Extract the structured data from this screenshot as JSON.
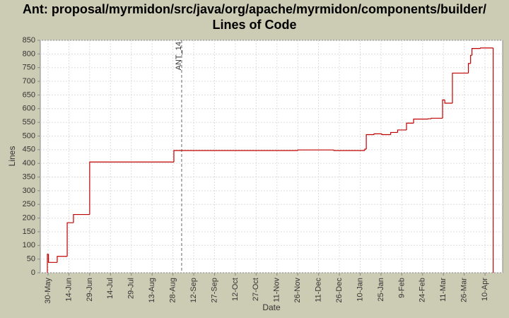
{
  "chart_data": {
    "type": "step",
    "title": [
      "Ant: proposal/myrmidon/src/java/org/apache/myrmidon/components/builder/",
      "Lines of Code"
    ],
    "x_label": "Date",
    "y_label": "Lines",
    "xlim": [
      -5.6,
      327.7
    ],
    "ylim": [
      0,
      850
    ],
    "xticks": [
      {
        "value": 0,
        "label": "30-May"
      },
      {
        "value": 15,
        "label": "14-Jun"
      },
      {
        "value": 30,
        "label": "29-Jun"
      },
      {
        "value": 45,
        "label": "14-Jul"
      },
      {
        "value": 60,
        "label": "29-Jul"
      },
      {
        "value": 75,
        "label": "13-Aug"
      },
      {
        "value": 90,
        "label": "28-Aug"
      },
      {
        "value": 105,
        "label": "12-Sep"
      },
      {
        "value": 120,
        "label": "27-Sep"
      },
      {
        "value": 135,
        "label": "12-Oct"
      },
      {
        "value": 150,
        "label": "27-Oct"
      },
      {
        "value": 165,
        "label": "11-Nov"
      },
      {
        "value": 180,
        "label": "26-Nov"
      },
      {
        "value": 195,
        "label": "11-Dec"
      },
      {
        "value": 210,
        "label": "26-Dec"
      },
      {
        "value": 225,
        "label": "10-Jan"
      },
      {
        "value": 240,
        "label": "25-Jan"
      },
      {
        "value": 255,
        "label": "9-Feb"
      },
      {
        "value": 270,
        "label": "24-Feb"
      },
      {
        "value": 285,
        "label": "11-Mar"
      },
      {
        "value": 300,
        "label": "26-Mar"
      },
      {
        "value": 315,
        "label": "10-Apr"
      }
    ],
    "yticks": [
      0,
      50,
      100,
      150,
      200,
      250,
      300,
      350,
      400,
      450,
      500,
      550,
      600,
      650,
      700,
      750,
      800,
      850
    ],
    "grid": true,
    "color": "#c00000",
    "x": [
      -0.5,
      0.3,
      6.6,
      13.8,
      18.3,
      30,
      90.7,
      180,
      206,
      228.3,
      229.4,
      235,
      240.6,
      247,
      252,
      258.4,
      263.5,
      274,
      276.2,
      284.4,
      286,
      291.5,
      303,
      304.6,
      305.6,
      311.7,
      320.9
    ],
    "values": [
      68,
      38,
      60,
      183,
      213,
      405,
      447,
      449,
      447,
      452,
      505,
      508,
      505,
      513,
      522,
      547,
      562,
      563,
      565,
      632,
      620,
      730,
      765,
      795,
      820,
      822,
      0
    ],
    "annotations": [
      {
        "x": 96.3,
        "label": "ANT_14"
      }
    ]
  }
}
